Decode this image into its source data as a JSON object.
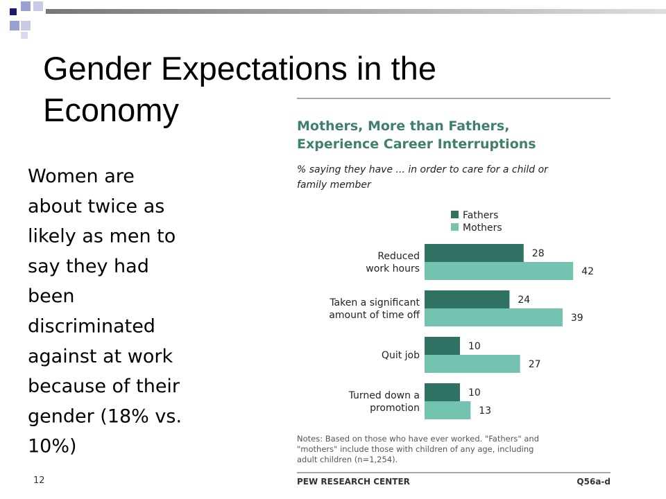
{
  "slide": {
    "title": [
      "Gender Expectations in the",
      "Economy"
    ],
    "body": [
      "Women are",
      "about twice as",
      "likely as men to",
      "say they had",
      "been",
      "discriminated",
      "against at work",
      "because of their",
      "gender (18% vs.",
      "10%)"
    ],
    "page_number": "12"
  },
  "chart_data": {
    "type": "hbar",
    "title": [
      "Mothers, More than Fathers,",
      "Experience Career Interruptions"
    ],
    "subtitle": [
      "% saying they have ... in order to care for a child or",
      "family member"
    ],
    "categories": [
      [
        "Reduced",
        "work hours"
      ],
      [
        "Taken a significant",
        "amount of time off"
      ],
      [
        "Quit job"
      ],
      [
        "Turned down a",
        "promotion"
      ]
    ],
    "series": [
      {
        "name": "Fathers",
        "color": "#2f7162",
        "values": [
          28,
          24,
          10,
          10
        ]
      },
      {
        "name": "Mothers",
        "color": "#74c3b1",
        "values": [
          42,
          39,
          27,
          13
        ]
      }
    ],
    "notes": [
      "Notes: Based on those who have ever worked. \"Fathers\" and",
      "\"mothers\" include those with children of any age, including",
      "adult children (n=1,254)."
    ],
    "source": "PEW RESEARCH CENTER",
    "question": "Q56a-d"
  }
}
